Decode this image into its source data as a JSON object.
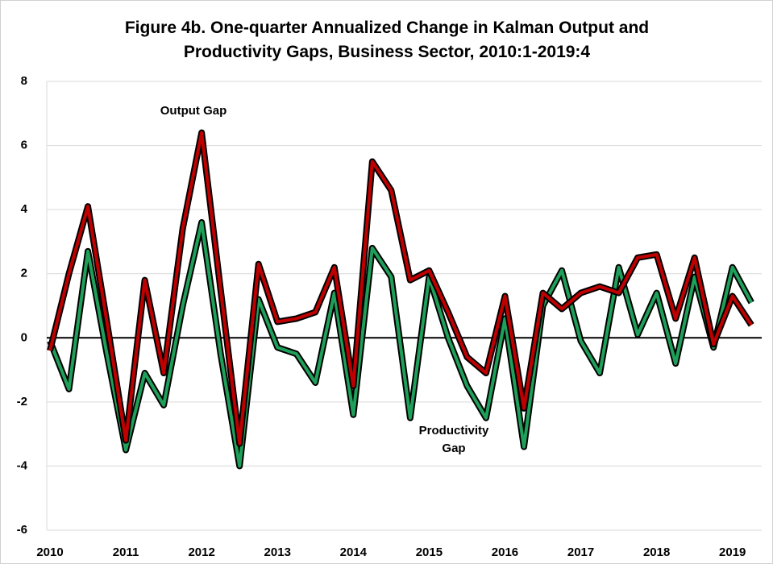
{
  "chart_data": {
    "type": "line",
    "title": "Figure 4b. One-quarter Annualized Change in Kalman Output and Productivity Gaps, Business Sector, 2010:1-2019:4",
    "categories": [
      "2010",
      null,
      null,
      null,
      "2011",
      null,
      null,
      null,
      "2012",
      null,
      null,
      null,
      "2013",
      null,
      null,
      null,
      "2014",
      null,
      null,
      null,
      "2015",
      null,
      null,
      null,
      "2016",
      null,
      null,
      null,
      "2017",
      null,
      null,
      null,
      "2018",
      null,
      null,
      null,
      "2019",
      null
    ],
    "series": [
      {
        "name": "Output Gap",
        "color": "#c00000",
        "values": [
          -0.4,
          2.0,
          4.1,
          0.5,
          -3.2,
          1.8,
          -1.1,
          3.4,
          6.4,
          1.5,
          -3.3,
          2.3,
          0.5,
          0.6,
          0.8,
          2.2,
          -1.5,
          5.5,
          4.6,
          1.8,
          2.1,
          0.8,
          -0.6,
          -1.1,
          1.3,
          -2.2,
          1.4,
          0.9,
          1.4,
          1.6,
          1.4,
          2.5,
          2.6,
          0.6,
          2.5,
          -0.2,
          1.3,
          0.4
        ]
      },
      {
        "name": "Productivity Gap",
        "color": "#1fa05a",
        "values": [
          -0.1,
          -1.6,
          2.7,
          -0.5,
          -3.5,
          -1.1,
          -2.1,
          1.0,
          3.6,
          -0.5,
          -4.0,
          1.2,
          -0.3,
          -0.5,
          -1.4,
          1.4,
          -2.4,
          2.8,
          1.9,
          -2.5,
          1.9,
          0.0,
          -1.5,
          -2.5,
          0.6,
          -3.4,
          1.0,
          2.1,
          -0.1,
          -1.1,
          2.2,
          0.1,
          1.4,
          -0.8,
          1.9,
          -0.3,
          2.2,
          1.1
        ]
      }
    ],
    "ylim": [
      -6,
      8
    ],
    "yticks": [
      -6,
      -4,
      -2,
      0,
      2,
      4,
      6,
      8
    ],
    "grid": true
  }
}
